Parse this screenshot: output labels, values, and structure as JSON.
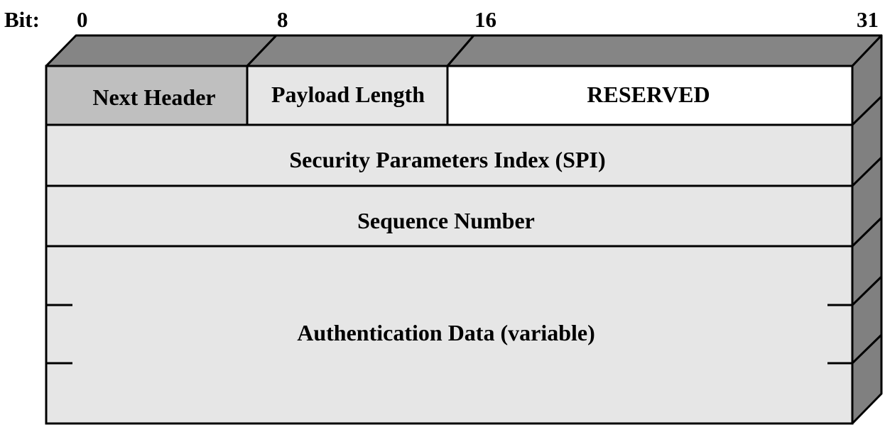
{
  "diagram": {
    "bit_prefix": "Bit:",
    "bit_marks": [
      "0",
      "8",
      "16",
      "31"
    ],
    "fields": {
      "next_header": "Next Header",
      "payload_length": "Payload Length",
      "reserved": "RESERVED",
      "spi": "Security Parameters Index (SPI)",
      "sequence_number": "Sequence Number",
      "authentication_data": "Authentication Data (variable)"
    },
    "colors": {
      "next_header_fill": "#bfbfbf",
      "light_fill": "#e6e6e6",
      "reserved_fill": "#ffffff",
      "side_fill": "#808080",
      "top_fill": "#858585",
      "stroke": "#000000"
    }
  }
}
